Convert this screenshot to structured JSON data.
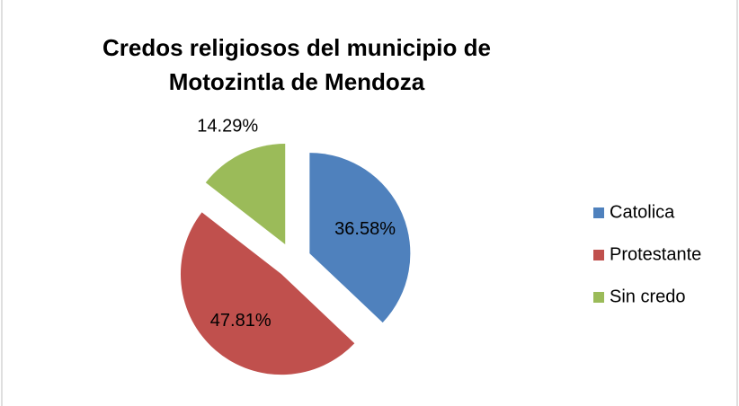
{
  "chart_data": {
    "type": "pie",
    "title": "Credos religiosos del municipio de Motozintla de Mendoza",
    "categories": [
      "Catolica",
      "Protestante",
      "Sin credo"
    ],
    "values": [
      36.58,
      47.81,
      14.29
    ],
    "value_labels": [
      "36.58%",
      "47.81%",
      "14.29%"
    ],
    "colors": [
      "#4f81bd",
      "#c0504d",
      "#9bbb59"
    ],
    "legend": "right"
  }
}
